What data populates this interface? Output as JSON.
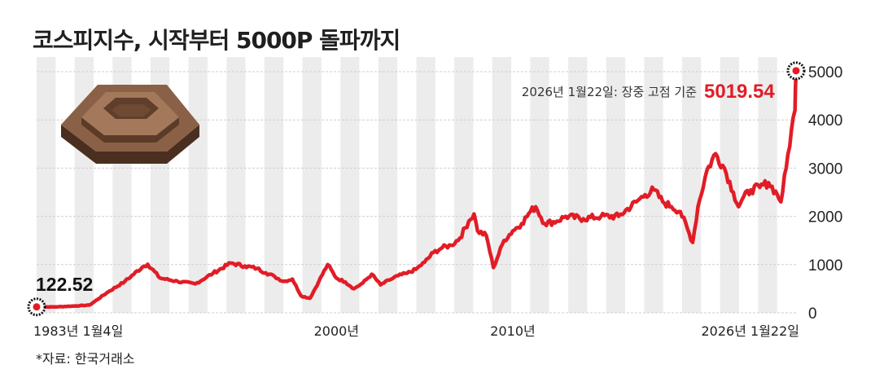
{
  "title": "코스피지수, 시작부터 5000P 돌파까지",
  "source": "*자료: 한국거래소",
  "colors": {
    "line": "#e21c26",
    "highlight": "#e21c26",
    "grid": "#cfcfcf",
    "stripe": "#ececec"
  },
  "chart_data": {
    "type": "line",
    "series": [
      {
        "x": [
          1983.0,
          1984.0,
          1985.0,
          1986.0,
          1987.0,
          1988.0,
          1989.0,
          1989.3,
          1990.0,
          1991.0,
          1992.0,
          1993.0,
          1994.0,
          1994.8,
          1995.5,
          1996.0,
          1996.5,
          1997.0,
          1997.5,
          1998.0,
          1998.5,
          1999.0,
          1999.5,
          2000.0,
          2000.5,
          2001.0,
          2001.5,
          2002.0,
          2002.5,
          2003.0,
          2003.5,
          2004.0,
          2004.5,
          2005.0,
          2005.5,
          2006.0,
          2006.5,
          2007.0,
          2007.5,
          2007.8,
          2008.0,
          2008.5,
          2008.9,
          2009.5,
          2010.0,
          2010.5,
          2011.0,
          2011.3,
          2011.8,
          2012.5,
          2013.0,
          2014.0,
          2015.0,
          2016.0,
          2017.0,
          2017.5,
          2018.0,
          2018.5,
          2019.0,
          2019.5,
          2020.2,
          2020.5,
          2021.0,
          2021.5,
          2022.0,
          2022.5,
          2022.8,
          2023.0,
          2023.5,
          2024.0,
          2024.5,
          2025.0,
          2025.2,
          2025.5,
          2025.8,
          2026.0,
          2026.06
        ],
        "values": [
          122.52,
          121,
          138,
          160,
          420,
          650,
          950,
          1007,
          720,
          650,
          600,
          820,
          1030,
          970,
          920,
          830,
          750,
          650,
          700,
          350,
          300,
          650,
          1000,
          720,
          640,
          500,
          620,
          800,
          580,
          680,
          770,
          820,
          900,
          1050,
          1250,
          1350,
          1400,
          1550,
          1900,
          2050,
          1700,
          1600,
          938,
          1500,
          1700,
          1850,
          2100,
          2200,
          1850,
          1900,
          2000,
          1950,
          2000,
          2000,
          2300,
          2450,
          2550,
          2300,
          2200,
          2100,
          1460,
          2200,
          2950,
          3300,
          3000,
          2500,
          2200,
          2350,
          2550,
          2600,
          2700,
          2450,
          2300,
          3000,
          3800,
          4200,
          5019.54
        ]
      }
    ],
    "ylim": [
      0,
      5000
    ],
    "yticks": [
      0,
      1000,
      2000,
      3000,
      4000,
      5000
    ],
    "xlim": [
      1983.0,
      2026.06
    ],
    "xticks": [
      {
        "x": 1983.0,
        "label": "1983년 1월4일"
      },
      {
        "x": 2000.0,
        "label": "2000년"
      },
      {
        "x": 2010.0,
        "label": "2010년"
      },
      {
        "x": 2026.06,
        "label": "2026년 1월22일"
      }
    ],
    "start_label": "122.52",
    "end_annotation": {
      "text": "2026년 1월22일: 장중 고점 기준",
      "value": "5019.54"
    },
    "grid": true,
    "y_axis_position": "right"
  }
}
